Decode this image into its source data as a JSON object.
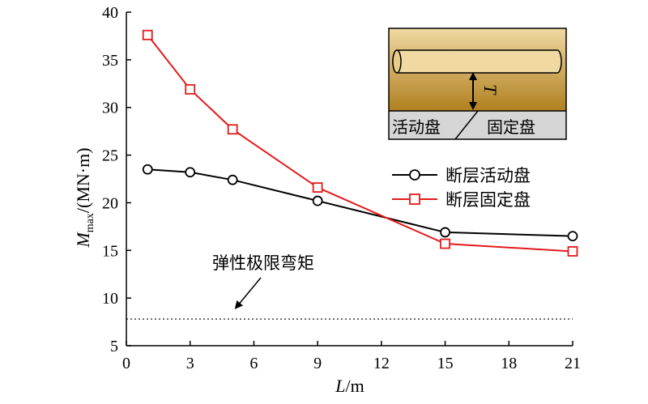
{
  "chart_data": {
    "type": "line",
    "x": [
      1,
      3,
      5,
      9,
      15,
      21
    ],
    "xlim": [
      0,
      21
    ],
    "ylim": [
      5,
      40
    ],
    "x_ticks": [
      "0",
      "3",
      "6",
      "9",
      "12",
      "15",
      "18",
      "21"
    ],
    "y_ticks": [
      "5",
      "10",
      "15",
      "20",
      "25",
      "30",
      "35",
      "40"
    ],
    "xlabel": {
      "italic": "L",
      "rest": "/m"
    },
    "ylabel": {
      "italic": "M",
      "subscript": "max",
      "rest": "/(MN·m)"
    },
    "series": [
      {
        "name": "断层活动盘",
        "color": "#000000",
        "marker": "circle",
        "values": [
          23.5,
          23.2,
          22.4,
          20.2,
          16.9,
          16.5
        ]
      },
      {
        "name": "断层固定盘",
        "color": "#e31a1c",
        "marker": "square",
        "values": [
          37.6,
          31.9,
          27.7,
          21.6,
          15.7,
          14.9
        ]
      }
    ],
    "reference_line": {
      "value": 7.8,
      "label": "弹性极限弯矩",
      "style": "dotted"
    },
    "legend_position": "right",
    "grid": false
  },
  "inset": {
    "symbol": "T",
    "left_label": "活动盘",
    "right_label": "固定盘",
    "colors": {
      "top": "#f0d9a2",
      "bottom": "#b08020",
      "ground": "#d6d6d6"
    }
  }
}
